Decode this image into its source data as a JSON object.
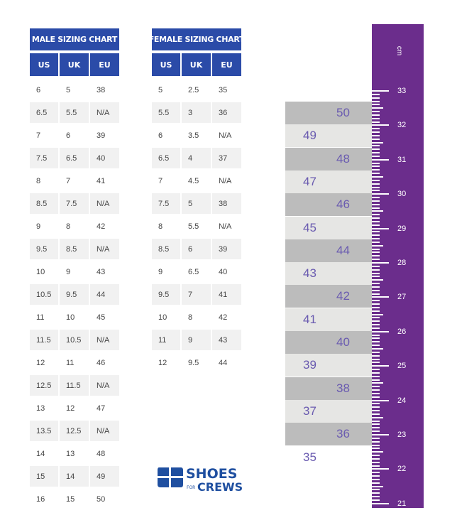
{
  "male": {
    "title": "MALE SIZING CHART",
    "headers": [
      "US",
      "UK",
      "EU"
    ],
    "rows": [
      [
        "6",
        "5",
        "38"
      ],
      [
        "6.5",
        "5.5",
        "N/A"
      ],
      [
        "7",
        "6",
        "39"
      ],
      [
        "7.5",
        "6.5",
        "40"
      ],
      [
        "8",
        "7",
        "41"
      ],
      [
        "8.5",
        "7.5",
        "N/A"
      ],
      [
        "9",
        "8",
        "42"
      ],
      [
        "9.5",
        "8.5",
        "N/A"
      ],
      [
        "10",
        "9",
        "43"
      ],
      [
        "10.5",
        "9.5",
        "44"
      ],
      [
        "11",
        "10",
        "45"
      ],
      [
        "11.5",
        "10.5",
        "N/A"
      ],
      [
        "12",
        "11",
        "46"
      ],
      [
        "12.5",
        "11.5",
        "N/A"
      ],
      [
        "13",
        "12",
        "47"
      ],
      [
        "13.5",
        "12.5",
        "N/A"
      ],
      [
        "14",
        "13",
        "48"
      ],
      [
        "15",
        "14",
        "49"
      ],
      [
        "16",
        "15",
        "50"
      ]
    ]
  },
  "female": {
    "title": "FEMALE SIZING CHART",
    "headers": [
      "US",
      "UK",
      "EU"
    ],
    "rows": [
      [
        "5",
        "2.5",
        "35"
      ],
      [
        "5.5",
        "3",
        "36"
      ],
      [
        "6",
        "3.5",
        "N/A"
      ],
      [
        "6.5",
        "4",
        "37"
      ],
      [
        "7",
        "4.5",
        "N/A"
      ],
      [
        "7.5",
        "5",
        "38"
      ],
      [
        "8",
        "5.5",
        "N/A"
      ],
      [
        "8.5",
        "6",
        "39"
      ],
      [
        "9",
        "6.5",
        "40"
      ],
      [
        "9.5",
        "7",
        "41"
      ],
      [
        "10",
        "8",
        "42"
      ],
      [
        "11",
        "9",
        "43"
      ],
      [
        "12",
        "9.5",
        "44"
      ]
    ]
  },
  "ruler": {
    "unit": "cm",
    "cm_labels": [
      "33",
      "32",
      "31",
      "30",
      "29",
      "28",
      "27",
      "26",
      "25",
      "24",
      "23",
      "22",
      "21"
    ],
    "eu_labels": [
      "50",
      "49",
      "48",
      "47",
      "46",
      "45",
      "44",
      "43",
      "42",
      "41",
      "40",
      "39",
      "38",
      "37",
      "36",
      "35"
    ]
  },
  "logo": {
    "line1": "SHOES",
    "line2_small": "FOR",
    "line2": "CREWS"
  },
  "colors": {
    "header_blue": "#2b4ba8",
    "ruler_purple": "#6b2d8c",
    "band_dark": "#bcbcbc",
    "band_light": "#e6e6e4",
    "eu_text": "#6a5bb0"
  }
}
